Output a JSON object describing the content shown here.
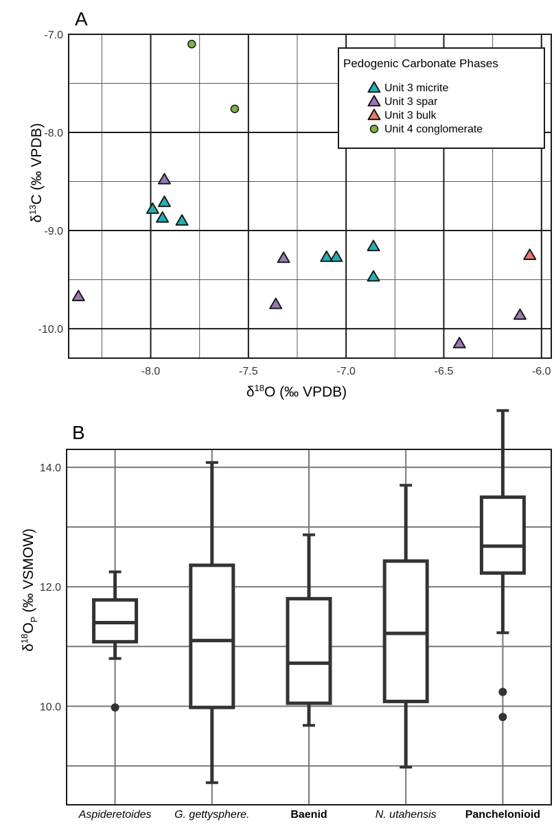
{
  "chart_data": [
    {
      "panel": "A",
      "type": "scatter",
      "xlabel_main": "δ",
      "xlabel_sup": "18",
      "xlabel_rest": "O (‰ VPDB)",
      "ylabel_main": "δ",
      "ylabel_sup": "13",
      "ylabel_rest": "C (‰ VPDB)",
      "xlim": [
        -8.42,
        -5.95
      ],
      "ylim": [
        -10.3,
        -7.0
      ],
      "xticks": [
        -8.0,
        -7.5,
        -7.0,
        -6.5,
        -6.0
      ],
      "xtick_labels": [
        "-8.0",
        "-7.5",
        "-7.0",
        "-6.5",
        "-6.0"
      ],
      "yticks": [
        -7.0,
        -8.0,
        -9.0,
        -10.0
      ],
      "ytick_labels": [
        "-7.0",
        "-8.0",
        "-9.0",
        "-10.0"
      ],
      "grid": true,
      "legend": {
        "title": "Pedogenic Carbonate Phases",
        "placement": "top-right"
      },
      "series": [
        {
          "name": "Unit 3 micrite",
          "marker": "triangle",
          "color": "#1fb3b3",
          "points": [
            [
              -7.99,
              -8.78
            ],
            [
              -7.93,
              -8.71
            ],
            [
              -7.94,
              -8.87
            ],
            [
              -7.84,
              -8.9
            ],
            [
              -7.1,
              -9.27
            ],
            [
              -7.05,
              -9.27
            ],
            [
              -6.86,
              -9.16
            ],
            [
              -6.86,
              -9.47
            ]
          ]
        },
        {
          "name": "Unit 3 spar",
          "marker": "triangle",
          "color": "#9b78b3",
          "points": [
            [
              -8.37,
              -9.67
            ],
            [
              -7.93,
              -8.48
            ],
            [
              -7.32,
              -9.28
            ],
            [
              -7.36,
              -9.75
            ],
            [
              -6.42,
              -10.15
            ],
            [
              -6.11,
              -9.86
            ]
          ]
        },
        {
          "name": "Unit 3 bulk",
          "marker": "triangle",
          "color": "#e8776a",
          "points": [
            [
              -6.06,
              -9.25
            ]
          ]
        },
        {
          "name": "Unit 4 conglomerate",
          "marker": "circle",
          "color": "#7db342",
          "points": [
            [
              -7.79,
              -7.1
            ],
            [
              -7.57,
              -7.76
            ]
          ]
        }
      ]
    },
    {
      "panel": "B",
      "type": "box",
      "ylabel_main": "δ",
      "ylabel_sup": "18",
      "ylabel_o": "O",
      "ylabel_sub": "P",
      "ylabel_rest": " (‰ VSMOW)",
      "ylim": [
        8.35,
        14.3
      ],
      "yticks": [
        10.0,
        12.0,
        14.0
      ],
      "ytick_labels": [
        "10.0",
        "12.0",
        "14.0"
      ],
      "grid": true,
      "categories": [
        {
          "label": "Aspideretoides",
          "style": "italic",
          "min": 10.8,
          "q1": 11.08,
          "median": 11.4,
          "q3": 11.78,
          "max": 12.25,
          "outliers": [
            9.98
          ]
        },
        {
          "label": "G. gettysphere.",
          "style": "italic",
          "min": 8.72,
          "q1": 9.98,
          "median": 11.1,
          "q3": 12.36,
          "max": 14.08,
          "outliers": []
        },
        {
          "label": "Baenid",
          "style": "bold",
          "min": 9.68,
          "q1": 10.05,
          "median": 10.72,
          "q3": 11.8,
          "max": 12.87,
          "outliers": []
        },
        {
          "label": "N. utahensis",
          "style": "italic",
          "min": 8.98,
          "q1": 10.08,
          "median": 11.22,
          "q3": 12.43,
          "max": 13.7,
          "outliers": []
        },
        {
          "label": "Panchelonioid",
          "style": "bold",
          "min": 11.23,
          "q1": 12.23,
          "median": 12.68,
          "q3": 13.5,
          "max": 14.95,
          "outliers": [
            10.24,
            9.82
          ]
        }
      ]
    }
  ]
}
